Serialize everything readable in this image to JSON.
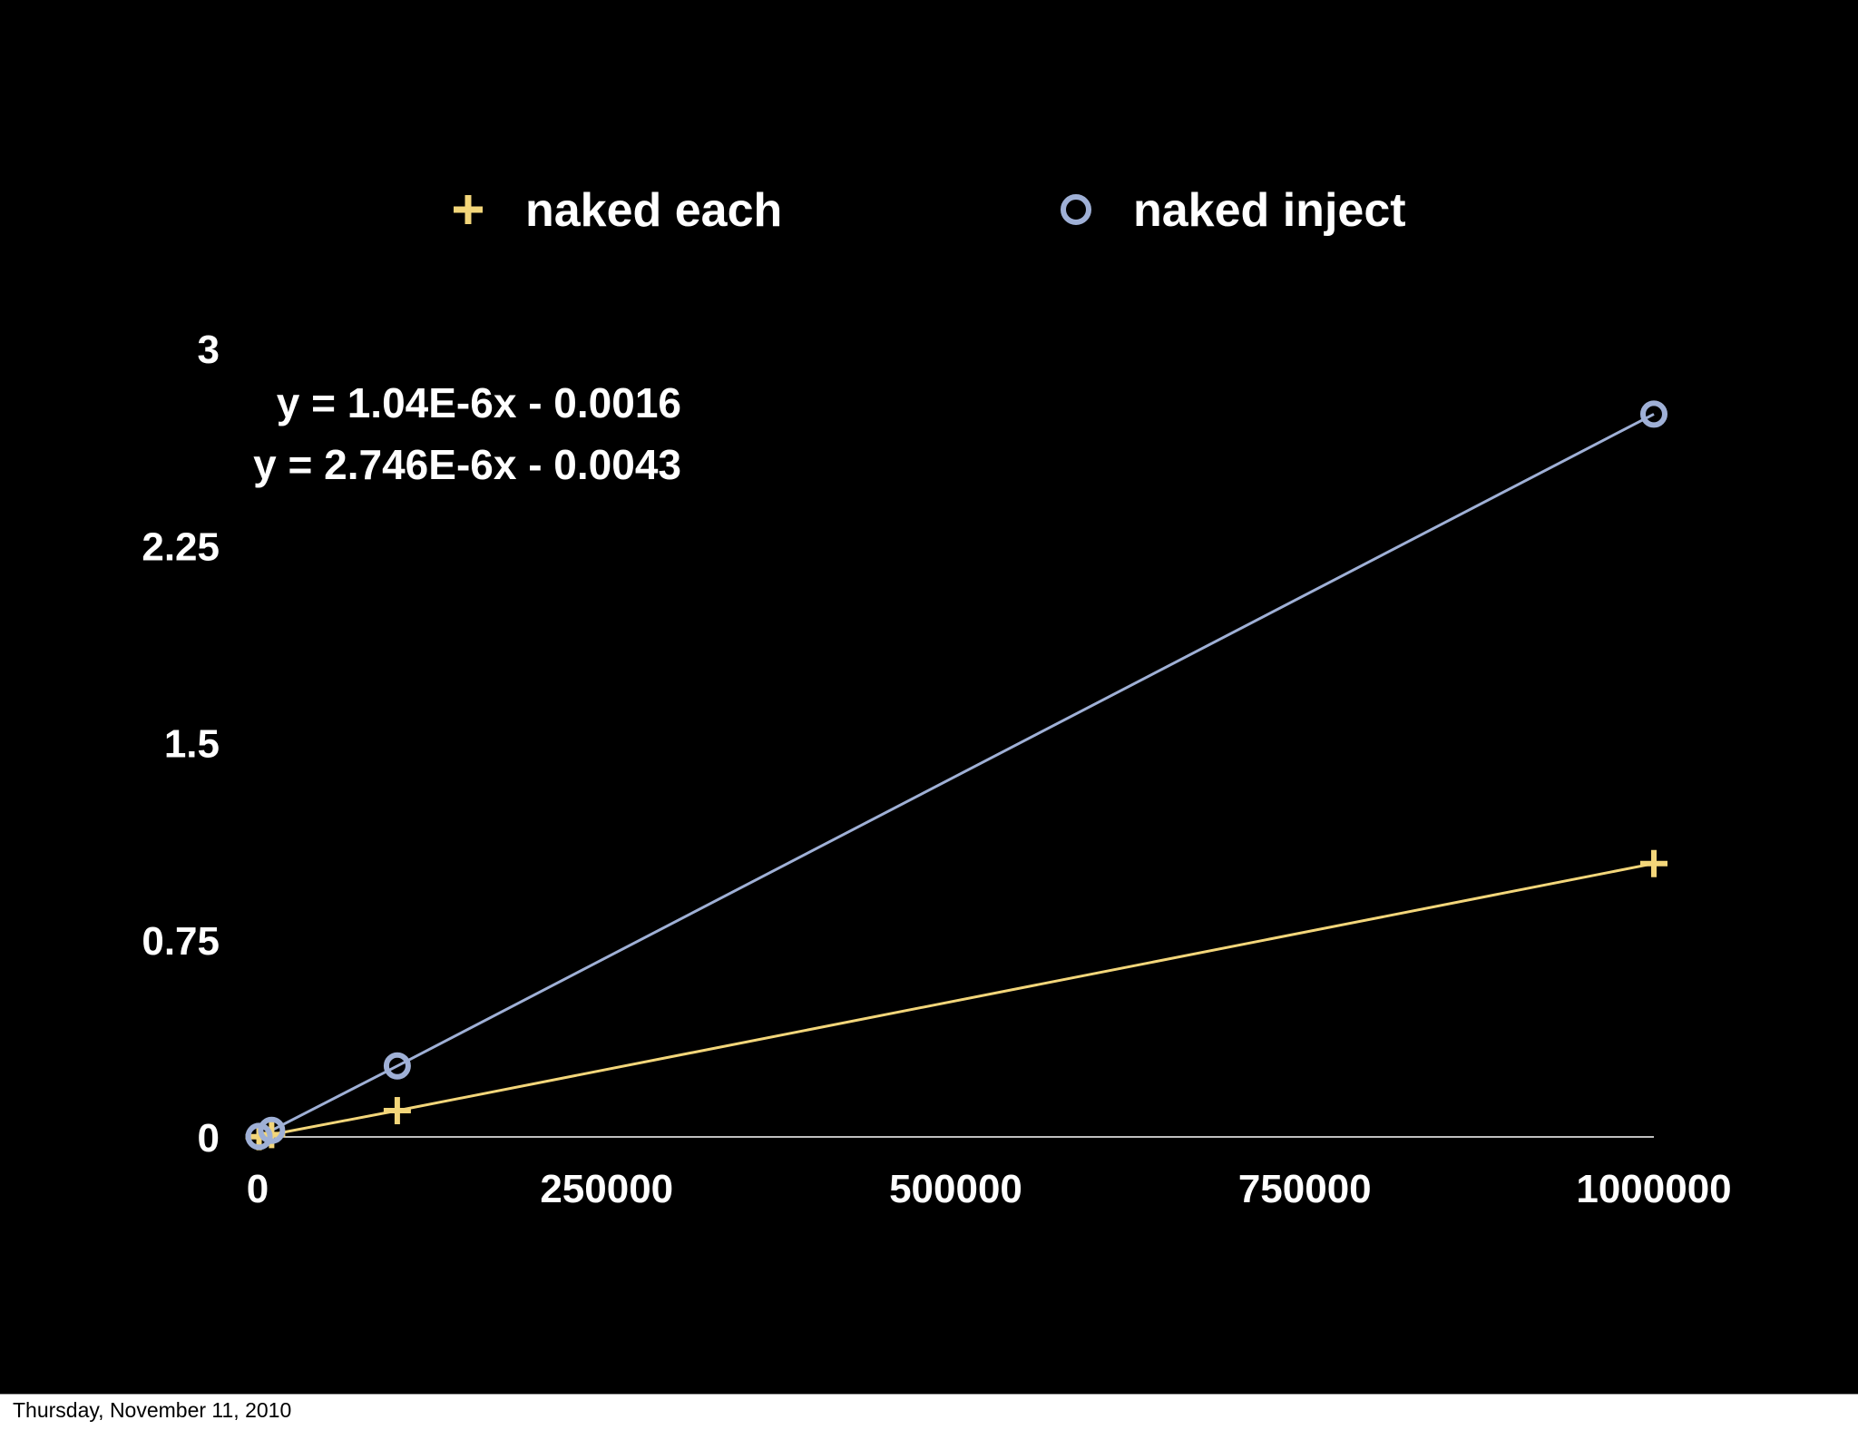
{
  "footer": {
    "date": "Thursday, November 11, 2010"
  },
  "chart_data": {
    "type": "scatter",
    "title": "",
    "xlabel": "",
    "ylabel": "",
    "x_ticks": [
      "0",
      "250000",
      "500000",
      "750000",
      "1000000"
    ],
    "y_ticks": [
      "0",
      "0.75",
      "1.5",
      "2.25",
      "3"
    ],
    "xlim": [
      0,
      1000000
    ],
    "ylim": [
      0,
      3
    ],
    "legend_position": "top",
    "grid": false,
    "series": [
      {
        "name": "naked each",
        "marker": "plus",
        "color": "#f3d67a",
        "points": [
          {
            "x": 1000,
            "y": 0.001
          },
          {
            "x": 10000,
            "y": 0.009
          },
          {
            "x": 100000,
            "y": 0.1
          },
          {
            "x": 1000000,
            "y": 1.04
          }
        ],
        "trendline": {
          "slope": 1.04e-06,
          "intercept": -0.0016,
          "label": "y = 1.04E-6x - 0.0016"
        }
      },
      {
        "name": "naked inject",
        "marker": "circle",
        "color": "#9fb0d6",
        "points": [
          {
            "x": 1000,
            "y": 0.002
          },
          {
            "x": 10000,
            "y": 0.025
          },
          {
            "x": 100000,
            "y": 0.27
          },
          {
            "x": 1000000,
            "y": 2.75
          }
        ],
        "trendline": {
          "slope": 2.746e-06,
          "intercept": -0.0043,
          "label": "y = 2.746E-6x - 0.0043"
        }
      }
    ]
  }
}
